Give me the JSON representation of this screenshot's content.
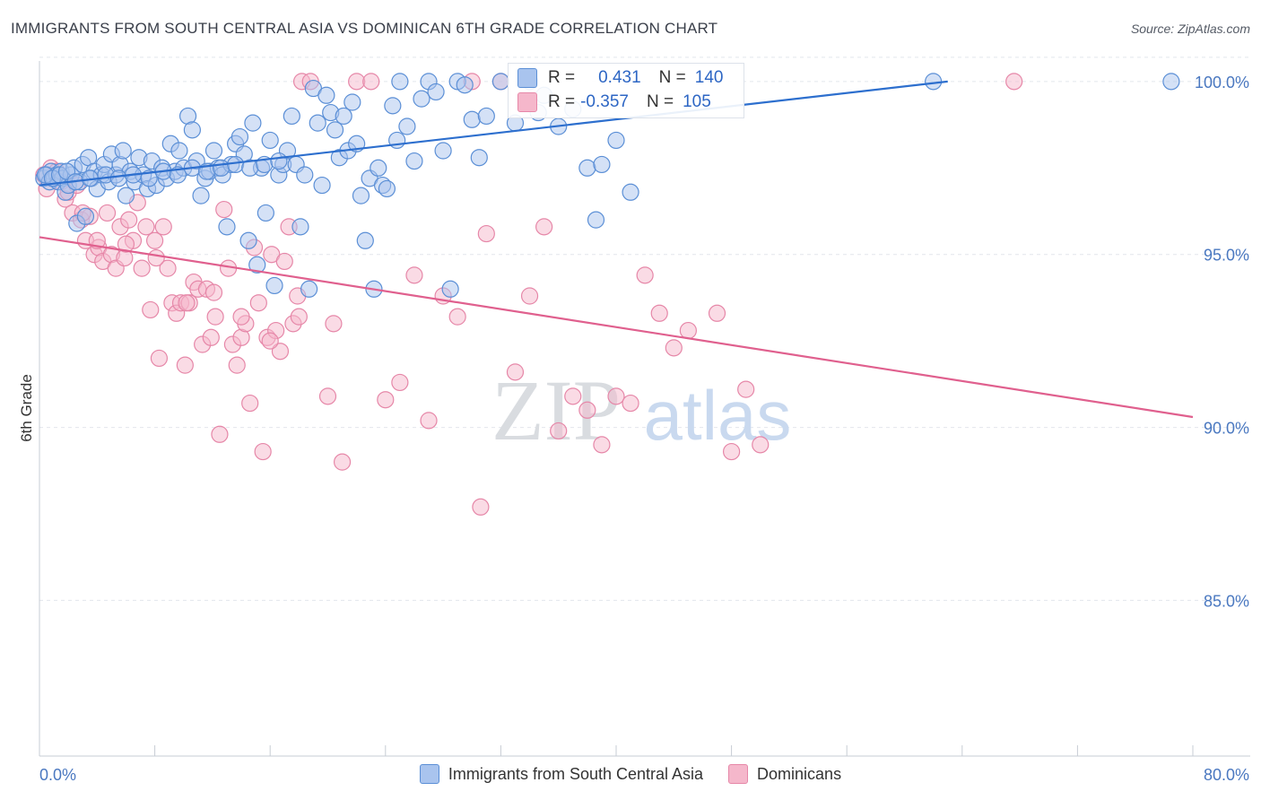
{
  "title": "IMMIGRANTS FROM SOUTH CENTRAL ASIA VS DOMINICAN 6TH GRADE CORRELATION CHART",
  "source": "Source: ZipAtlas.com",
  "watermark": {
    "zip": "ZIP",
    "atlas": "atlas"
  },
  "colors": {
    "blue_fill": "#a9c4ee",
    "blue_stroke": "#5b8fd6",
    "blue_line": "#2d6fce",
    "pink_fill": "#f5b7cb",
    "pink_stroke": "#e687a8",
    "pink_line": "#e0608e",
    "axis_text": "#4a78c0",
    "grid": "#e2e6ec"
  },
  "stats": {
    "blue": {
      "r_label": "R =",
      "r_value": "0.431",
      "n_label": "N =",
      "n_value": "140"
    },
    "pink": {
      "r_label": "R =",
      "r_value": "-0.357",
      "n_label": "N =",
      "n_value": "105"
    }
  },
  "legend": [
    {
      "label": "Immigrants from South Central Asia",
      "color": "#a9c4ee",
      "border": "#5b8fd6"
    },
    {
      "label": "Dominicans",
      "color": "#f5b7cb",
      "border": "#e687a8"
    }
  ],
  "chart_data": {
    "type": "scatter",
    "title": "IMMIGRANTS FROM SOUTH CENTRAL ASIA VS DOMINICAN 6TH GRADE CORRELATION CHART",
    "xlabel": "",
    "ylabel": "6th Grade",
    "xlim": [
      0,
      80
    ],
    "ylim": [
      80.5,
      100.8
    ],
    "x_tick_labels": [
      "0.0%",
      "80.0%"
    ],
    "y_ticks": [
      85,
      90,
      95,
      100
    ],
    "y_tick_labels": [
      "85.0%",
      "90.0%",
      "95.0%",
      "100.0%"
    ],
    "grid": "horizontal dashed",
    "series": [
      {
        "name": "Immigrants from South Central Asia",
        "trend": [
          [
            0,
            97.0
          ],
          [
            63,
            100.0
          ]
        ],
        "points": [
          [
            0.3,
            97.2
          ],
          [
            0.5,
            97.3
          ],
          [
            0.7,
            97.1
          ],
          [
            0.8,
            97.4
          ],
          [
            1.0,
            97.2
          ],
          [
            1.2,
            97.3
          ],
          [
            1.3,
            97.1
          ],
          [
            1.5,
            97.4
          ],
          [
            1.6,
            97.2
          ],
          [
            1.8,
            96.8
          ],
          [
            2.0,
            97.0
          ],
          [
            2.2,
            97.3
          ],
          [
            2.4,
            97.5
          ],
          [
            2.6,
            95.9
          ],
          [
            2.8,
            97.1
          ],
          [
            3.0,
            97.6
          ],
          [
            3.2,
            96.1
          ],
          [
            3.4,
            97.8
          ],
          [
            3.6,
            97.2
          ],
          [
            3.8,
            97.4
          ],
          [
            4.0,
            96.9
          ],
          [
            4.3,
            97.3
          ],
          [
            4.5,
            97.6
          ],
          [
            4.8,
            97.1
          ],
          [
            5.0,
            97.9
          ],
          [
            5.3,
            97.3
          ],
          [
            5.6,
            97.6
          ],
          [
            5.8,
            98.0
          ],
          [
            6.0,
            96.7
          ],
          [
            6.3,
            97.4
          ],
          [
            6.6,
            97.1
          ],
          [
            6.9,
            97.8
          ],
          [
            7.2,
            97.3
          ],
          [
            7.5,
            96.9
          ],
          [
            7.8,
            97.7
          ],
          [
            8.1,
            97.0
          ],
          [
            8.5,
            97.5
          ],
          [
            8.8,
            97.2
          ],
          [
            9.1,
            98.2
          ],
          [
            9.4,
            97.4
          ],
          [
            9.7,
            98.0
          ],
          [
            10.0,
            97.5
          ],
          [
            10.3,
            99.0
          ],
          [
            10.6,
            98.6
          ],
          [
            10.9,
            97.7
          ],
          [
            11.2,
            96.7
          ],
          [
            11.5,
            97.2
          ],
          [
            11.8,
            97.4
          ],
          [
            12.1,
            98.0
          ],
          [
            12.4,
            97.5
          ],
          [
            12.7,
            97.3
          ],
          [
            13.0,
            95.8
          ],
          [
            13.3,
            97.6
          ],
          [
            13.6,
            98.2
          ],
          [
            13.9,
            98.4
          ],
          [
            14.2,
            97.9
          ],
          [
            14.5,
            95.4
          ],
          [
            14.8,
            98.8
          ],
          [
            15.1,
            94.7
          ],
          [
            15.4,
            97.5
          ],
          [
            15.7,
            96.2
          ],
          [
            16.0,
            98.3
          ],
          [
            16.3,
            94.1
          ],
          [
            16.6,
            97.3
          ],
          [
            16.9,
            97.6
          ],
          [
            17.2,
            98.0
          ],
          [
            17.5,
            99.0
          ],
          [
            17.8,
            97.6
          ],
          [
            18.1,
            95.8
          ],
          [
            18.4,
            97.3
          ],
          [
            18.7,
            94.0
          ],
          [
            19.0,
            99.8
          ],
          [
            19.3,
            98.8
          ],
          [
            19.6,
            97.0
          ],
          [
            19.9,
            99.6
          ],
          [
            20.2,
            99.1
          ],
          [
            20.5,
            98.6
          ],
          [
            20.8,
            97.8
          ],
          [
            21.1,
            99.0
          ],
          [
            21.4,
            98.0
          ],
          [
            21.7,
            99.4
          ],
          [
            22.0,
            98.2
          ],
          [
            22.3,
            96.7
          ],
          [
            22.6,
            95.4
          ],
          [
            22.9,
            97.2
          ],
          [
            23.2,
            94.0
          ],
          [
            23.5,
            97.5
          ],
          [
            23.8,
            97.0
          ],
          [
            24.1,
            96.9
          ],
          [
            24.5,
            99.3
          ],
          [
            24.8,
            98.3
          ],
          [
            25.0,
            100.0
          ],
          [
            25.5,
            98.7
          ],
          [
            26.0,
            97.7
          ],
          [
            26.5,
            99.5
          ],
          [
            27.0,
            100.0
          ],
          [
            27.5,
            99.7
          ],
          [
            28.0,
            98.0
          ],
          [
            28.5,
            94.0
          ],
          [
            29.0,
            100.0
          ],
          [
            29.5,
            99.9
          ],
          [
            30.0,
            98.9
          ],
          [
            30.5,
            97.8
          ],
          [
            31.0,
            99.0
          ],
          [
            32.0,
            100.0
          ],
          [
            33.0,
            98.8
          ],
          [
            34.0,
            100.0
          ],
          [
            35.0,
            99.6
          ],
          [
            36.0,
            98.7
          ],
          [
            37.0,
            99.2
          ],
          [
            38.0,
            97.5
          ],
          [
            39.0,
            97.6
          ],
          [
            40.0,
            98.3
          ],
          [
            41.0,
            96.8
          ],
          [
            62.0,
            100.0
          ],
          [
            78.5,
            100.0
          ],
          [
            0.4,
            97.3
          ],
          [
            0.9,
            97.2
          ],
          [
            1.4,
            97.3
          ],
          [
            1.9,
            97.4
          ],
          [
            2.5,
            97.1
          ],
          [
            3.5,
            97.2
          ],
          [
            4.6,
            97.3
          ],
          [
            5.5,
            97.2
          ],
          [
            6.5,
            97.3
          ],
          [
            7.6,
            97.2
          ],
          [
            8.6,
            97.4
          ],
          [
            9.6,
            97.3
          ],
          [
            10.6,
            97.5
          ],
          [
            11.6,
            97.4
          ],
          [
            12.6,
            97.5
          ],
          [
            13.6,
            97.6
          ],
          [
            14.6,
            97.5
          ],
          [
            15.6,
            97.6
          ],
          [
            16.6,
            97.7
          ],
          [
            38.6,
            96.0
          ],
          [
            34.6,
            99.1
          ]
        ]
      },
      {
        "name": "Dominicans",
        "trend": [
          [
            0,
            95.5
          ],
          [
            80,
            90.3
          ]
        ],
        "points": [
          [
            0.3,
            97.3
          ],
          [
            0.5,
            96.9
          ],
          [
            0.8,
            97.5
          ],
          [
            1.0,
            97.2
          ],
          [
            1.2,
            97.4
          ],
          [
            1.5,
            97.1
          ],
          [
            1.8,
            96.6
          ],
          [
            2.0,
            96.8
          ],
          [
            2.3,
            96.2
          ],
          [
            2.6,
            97.0
          ],
          [
            2.9,
            96.0
          ],
          [
            3.2,
            95.4
          ],
          [
            3.5,
            96.1
          ],
          [
            3.8,
            95.0
          ],
          [
            4.1,
            95.2
          ],
          [
            4.4,
            94.8
          ],
          [
            4.7,
            96.2
          ],
          [
            5.0,
            95.0
          ],
          [
            5.3,
            94.6
          ],
          [
            5.6,
            95.8
          ],
          [
            5.9,
            94.9
          ],
          [
            6.2,
            96.0
          ],
          [
            6.5,
            95.4
          ],
          [
            6.8,
            96.5
          ],
          [
            7.1,
            94.6
          ],
          [
            7.4,
            95.8
          ],
          [
            7.7,
            93.4
          ],
          [
            8.0,
            95.4
          ],
          [
            8.3,
            92.0
          ],
          [
            8.6,
            95.8
          ],
          [
            8.9,
            94.6
          ],
          [
            9.2,
            93.6
          ],
          [
            9.5,
            93.3
          ],
          [
            9.8,
            93.6
          ],
          [
            10.1,
            91.8
          ],
          [
            10.4,
            93.6
          ],
          [
            10.7,
            94.2
          ],
          [
            11.0,
            94.0
          ],
          [
            11.3,
            92.4
          ],
          [
            11.6,
            94.0
          ],
          [
            11.9,
            92.6
          ],
          [
            12.2,
            93.2
          ],
          [
            12.5,
            89.8
          ],
          [
            12.8,
            96.3
          ],
          [
            13.1,
            94.6
          ],
          [
            13.4,
            92.4
          ],
          [
            13.7,
            91.8
          ],
          [
            14.0,
            92.6
          ],
          [
            14.3,
            93.0
          ],
          [
            14.6,
            90.7
          ],
          [
            14.9,
            95.2
          ],
          [
            15.2,
            93.6
          ],
          [
            15.5,
            89.3
          ],
          [
            15.8,
            92.6
          ],
          [
            16.1,
            95.0
          ],
          [
            16.4,
            92.8
          ],
          [
            16.7,
            92.2
          ],
          [
            17.0,
            94.8
          ],
          [
            17.3,
            95.8
          ],
          [
            17.6,
            93.0
          ],
          [
            17.9,
            93.8
          ],
          [
            18.2,
            100.0
          ],
          [
            18.8,
            100.0
          ],
          [
            20.0,
            90.9
          ],
          [
            21.0,
            89.0
          ],
          [
            22.0,
            100.0
          ],
          [
            23.0,
            100.0
          ],
          [
            24.0,
            90.8
          ],
          [
            25.0,
            91.3
          ],
          [
            26.0,
            94.4
          ],
          [
            27.0,
            90.2
          ],
          [
            28.0,
            93.8
          ],
          [
            29.0,
            93.2
          ],
          [
            30.0,
            100.0
          ],
          [
            30.6,
            87.7
          ],
          [
            31.0,
            95.6
          ],
          [
            32.0,
            100.0
          ],
          [
            33.0,
            91.6
          ],
          [
            34.0,
            93.8
          ],
          [
            35.0,
            95.8
          ],
          [
            36.0,
            89.9
          ],
          [
            37.0,
            90.9
          ],
          [
            38.0,
            90.5
          ],
          [
            39.0,
            89.5
          ],
          [
            40.0,
            90.9
          ],
          [
            41.0,
            90.7
          ],
          [
            42.0,
            94.4
          ],
          [
            43.0,
            93.3
          ],
          [
            44.0,
            92.3
          ],
          [
            45.0,
            92.8
          ],
          [
            47.0,
            93.3
          ],
          [
            48.0,
            89.3
          ],
          [
            49.0,
            91.1
          ],
          [
            50.0,
            89.5
          ],
          [
            67.6,
            100.0
          ],
          [
            3.0,
            96.2
          ],
          [
            4.0,
            95.4
          ],
          [
            6.0,
            95.3
          ],
          [
            8.1,
            94.9
          ],
          [
            10.2,
            93.6
          ],
          [
            12.1,
            93.9
          ],
          [
            14.0,
            93.2
          ],
          [
            16.0,
            92.5
          ],
          [
            18.0,
            93.2
          ],
          [
            20.4,
            93.0
          ]
        ]
      }
    ]
  }
}
